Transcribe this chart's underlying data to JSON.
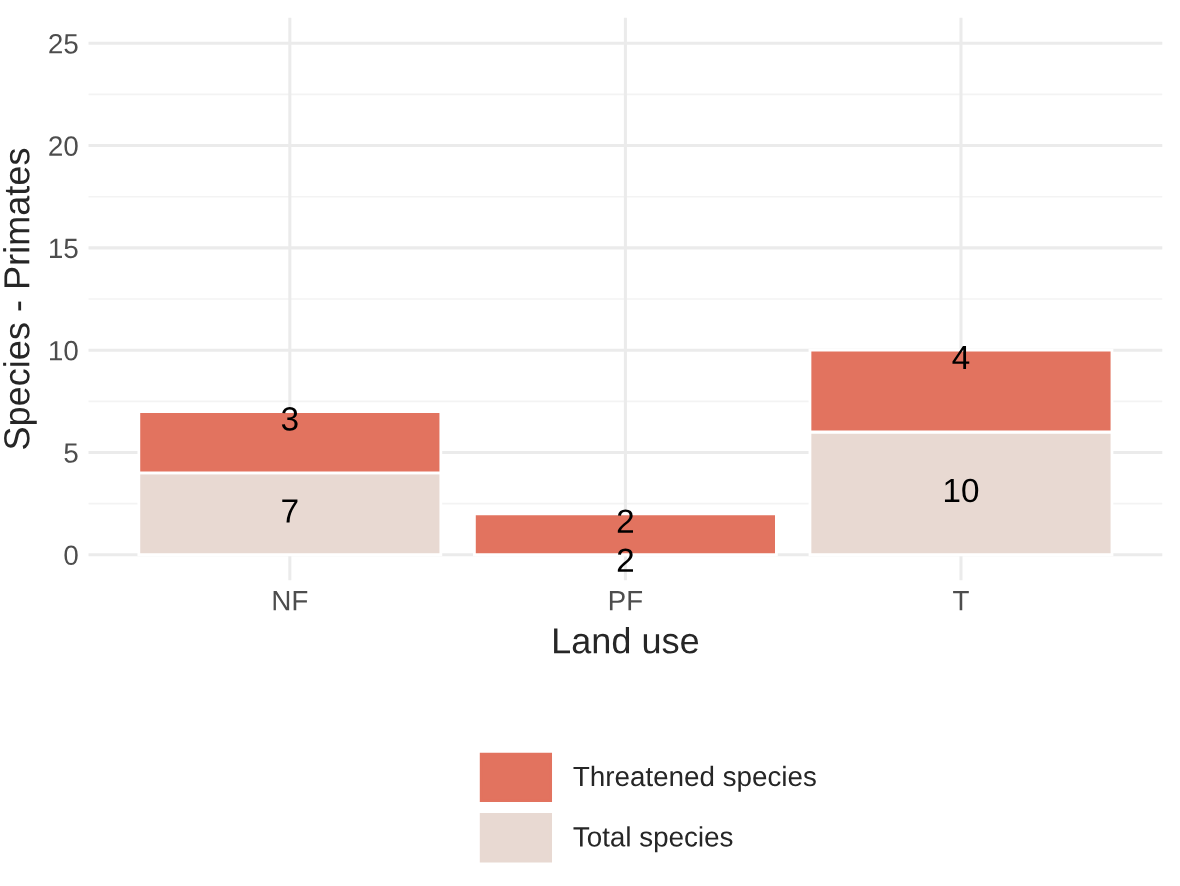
{
  "chart_data": {
    "type": "bar",
    "stacked": true,
    "xlabel": "Land use",
    "ylabel": "Species - Primates",
    "categories": [
      "NF",
      "PF",
      "T"
    ],
    "series": [
      {
        "name": "Total species",
        "color": "#e8d9d2",
        "values": [
          4,
          0,
          6
        ]
      },
      {
        "name": "Threatened species",
        "color": "#e2735f",
        "values": [
          3,
          2,
          4
        ],
        "value_labels": [
          "3",
          "2",
          "4"
        ]
      }
    ],
    "totals": [
      "7",
      "2",
      "10"
    ],
    "ylim": [
      -1.25,
      26.25
    ],
    "yticks": [
      0,
      5,
      10,
      15,
      20,
      25
    ],
    "grid": true,
    "legend": "bottom"
  }
}
